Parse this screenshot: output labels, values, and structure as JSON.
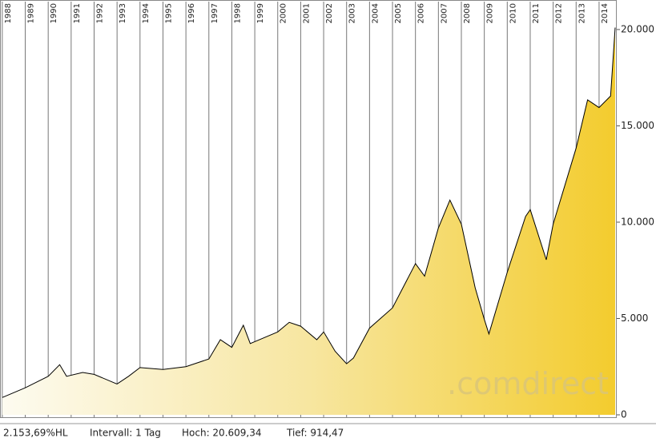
{
  "chart_data": {
    "type": "area",
    "x": [
      1988.0,
      1989.0,
      1990.0,
      1990.5,
      1990.8,
      1991.5,
      1992.0,
      1993.0,
      1993.5,
      1994.0,
      1995.0,
      1996.0,
      1997.0,
      1997.5,
      1998.0,
      1998.5,
      1998.8,
      1999.0,
      2000.0,
      2000.5,
      2001.0,
      2001.7,
      2002.0,
      2002.5,
      2003.0,
      2003.3,
      2004.0,
      2005.0,
      2006.0,
      2006.4,
      2007.0,
      2007.5,
      2008.0,
      2008.6,
      2009.0,
      2009.2,
      2010.0,
      2010.8,
      2011.0,
      2011.7,
      2012.0,
      2013.0,
      2013.5,
      2014.0,
      2014.5,
      2014.7
    ],
    "values": [
      900,
      1400,
      2000,
      2600,
      2000,
      2200,
      2100,
      1600,
      2000,
      2450,
      2350,
      2500,
      2900,
      3900,
      3500,
      4650,
      3700,
      3800,
      4300,
      4800,
      4600,
      3900,
      4300,
      3300,
      2650,
      2950,
      4500,
      5550,
      7850,
      7200,
      9700,
      11150,
      9900,
      6600,
      4950,
      4200,
      7400,
      10300,
      10650,
      8050,
      9900,
      13850,
      16350,
      15950,
      16550,
      20100
    ],
    "color": "#000000",
    "xlim": [
      1987.9,
      2014.77
    ],
    "xticks": [
      1988,
      1989,
      1990,
      1991,
      1992,
      1993,
      1994,
      1995,
      1996,
      1997,
      1998,
      1999,
      2000,
      2001,
      2002,
      2003,
      2004,
      2005,
      2006,
      2007,
      2008,
      2009,
      2010,
      2011,
      2012,
      2013,
      2014
    ],
    "ylim": [
      -125,
      21450
    ],
    "yticks": [
      0,
      {
        "value": 5000,
        "label": "5.000"
      },
      {
        "value": 10000,
        "label": "10.000"
      },
      {
        "value": 15000,
        "label": "15.000"
      },
      {
        "value": 20000,
        "label": "20.000"
      }
    ],
    "grid": true,
    "watermark": ".comdirect",
    "footer": [
      "2.153,69%HL",
      "Intervall: 1 Tag",
      "Hoch: 20.609,34",
      "Tief: 914,47"
    ]
  }
}
